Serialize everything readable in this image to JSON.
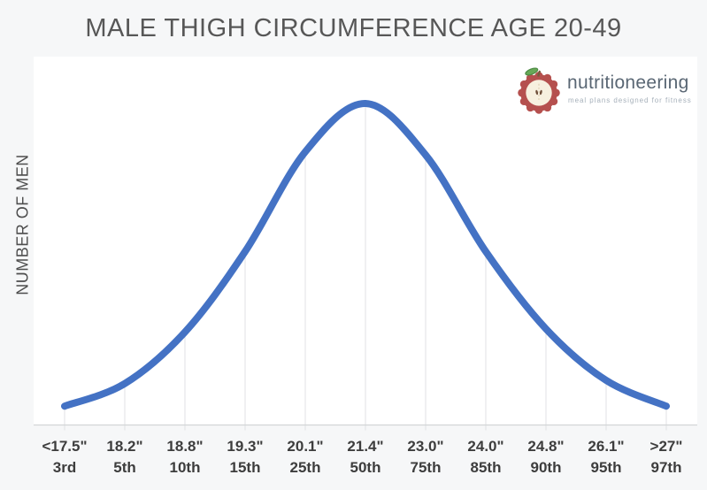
{
  "page": {
    "background": "#f6f7f8"
  },
  "chart": {
    "title": "MALE THIGH CIRCUMFERENCE AGE 20-49"
  },
  "logo": {
    "brand": "nutritioneering",
    "tagline": "meal plans designed for fitness",
    "icon": "apple-icon"
  },
  "colors": {
    "page_bg": "#f6f7f8",
    "title_text": "#575757",
    "y_label_text": "#4d4d4d",
    "axis_label_text": "#3d3d3d",
    "plot_background": "#ffffff",
    "curve": "#4472c4",
    "gridline": "#e0e2e4",
    "axis_line": "#d2d5d7",
    "logo_apple_red": "#b5504e",
    "logo_apple_cream": "#f7f0df",
    "logo_apple_core": "#ddceb2",
    "logo_seed_brown": "#6f4f3a",
    "logo_stem_brown": "#7a5b3f",
    "logo_leaf_green": "#67a857",
    "logo_leaf_edge": "#4c8a44",
    "logo_text": "#5a6774",
    "logo_tagline": "#a6b0ba"
  },
  "chart_data": {
    "type": "line",
    "shape": "bell-curve",
    "title": "MALE THIGH CIRCUMFERENCE AGE 20-49",
    "xlabel": "",
    "ylabel": "NUMBER OF MEN",
    "legend_visible": false,
    "y_ticks_visible": false,
    "grid": "vertical drop lines from curve to x-axis at each category",
    "x_tick_sizes": [
      "<17.5\"",
      "18.2\"",
      "18.8\"",
      "19.3\"",
      "20.1\"",
      "21.4\"",
      "23.0\"",
      "24.0\"",
      "24.8\"",
      "26.1\"",
      ">27\""
    ],
    "x_tick_percentiles": [
      "3rd",
      "5th",
      "10th",
      "15th",
      "25th",
      "50th",
      "75th",
      "85th",
      "90th",
      "95th",
      "97th"
    ],
    "values_relative": [
      0.06,
      0.13,
      0.29,
      0.54,
      0.85,
      1.0,
      0.84,
      0.54,
      0.3,
      0.14,
      0.06
    ],
    "ylim": [
      0,
      1.05
    ]
  }
}
